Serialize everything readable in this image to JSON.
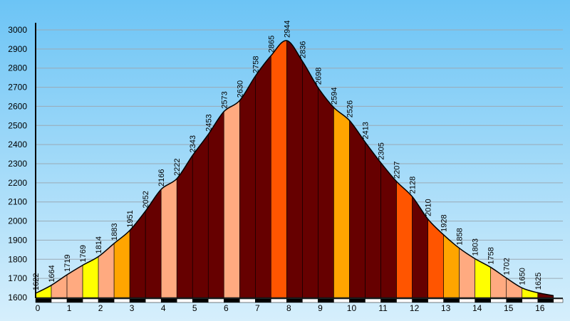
{
  "chart_data": {
    "type": "area",
    "title": "",
    "xlabel": "",
    "ylabel": "",
    "xlim": [
      0,
      16.8
    ],
    "ylim": [
      1600,
      3000
    ],
    "y_ticks": [
      1600,
      1700,
      1800,
      1900,
      2000,
      2100,
      2200,
      2300,
      2400,
      2500,
      2600,
      2700,
      2800,
      2900,
      3000
    ],
    "x_ticks": [
      0,
      1,
      2,
      3,
      4,
      5,
      6,
      7,
      8,
      9,
      10,
      11,
      12,
      13,
      14,
      15,
      16
    ],
    "grid": true,
    "x": [
      0,
      0.5,
      1,
      1.5,
      2,
      2.5,
      3,
      3.5,
      4,
      4.5,
      5,
      5.5,
      6,
      6.5,
      7,
      7.5,
      8,
      8.5,
      9,
      9.5,
      10,
      10.5,
      11,
      11.5,
      12,
      12.5,
      13,
      13.5,
      14,
      14.5,
      15,
      15.5,
      16,
      16.5
    ],
    "values": [
      1622,
      1664,
      1719,
      1769,
      1814,
      1883,
      1951,
      2052,
      2166,
      2222,
      2343,
      2453,
      2573,
      2630,
      2758,
      2865,
      2944,
      2836,
      2698,
      2594,
      2526,
      2413,
      2305,
      2207,
      2128,
      2010,
      1928,
      1858,
      1803,
      1758,
      1702,
      1650,
      1625,
      1610
    ],
    "value_labels": [
      "1622",
      "1664",
      "1719",
      "1769",
      "1814",
      "1883",
      "1951",
      "2052",
      "2166",
      "2222",
      "2343",
      "2453",
      "2573",
      "2630",
      "2758",
      "2865",
      "2944",
      "2836",
      "2698",
      "2594",
      "2526",
      "2413",
      "2305",
      "2207",
      "2128",
      "2010",
      "1928",
      "1858",
      "1803",
      "1758",
      "1702",
      "1650",
      "1625",
      ""
    ],
    "segment_colors": [
      "#ffff00",
      "#ffaa80",
      "#ffaa80",
      "#ffff00",
      "#ffaa80",
      "#ffa500",
      "#660000",
      "#660000",
      "#ffaa80",
      "#660000",
      "#660000",
      "#660000",
      "#ffaa80",
      "#660000",
      "#660000",
      "#ff5500",
      "#660000",
      "#660000",
      "#660000",
      "#ffa500",
      "#660000",
      "#660000",
      "#660000",
      "#ff5500",
      "#660000",
      "#ff5500",
      "#ffa500",
      "#ffaa80",
      "#ffff00",
      "#ffaa80",
      "#ffaa80",
      "#ffff00"
    ]
  }
}
